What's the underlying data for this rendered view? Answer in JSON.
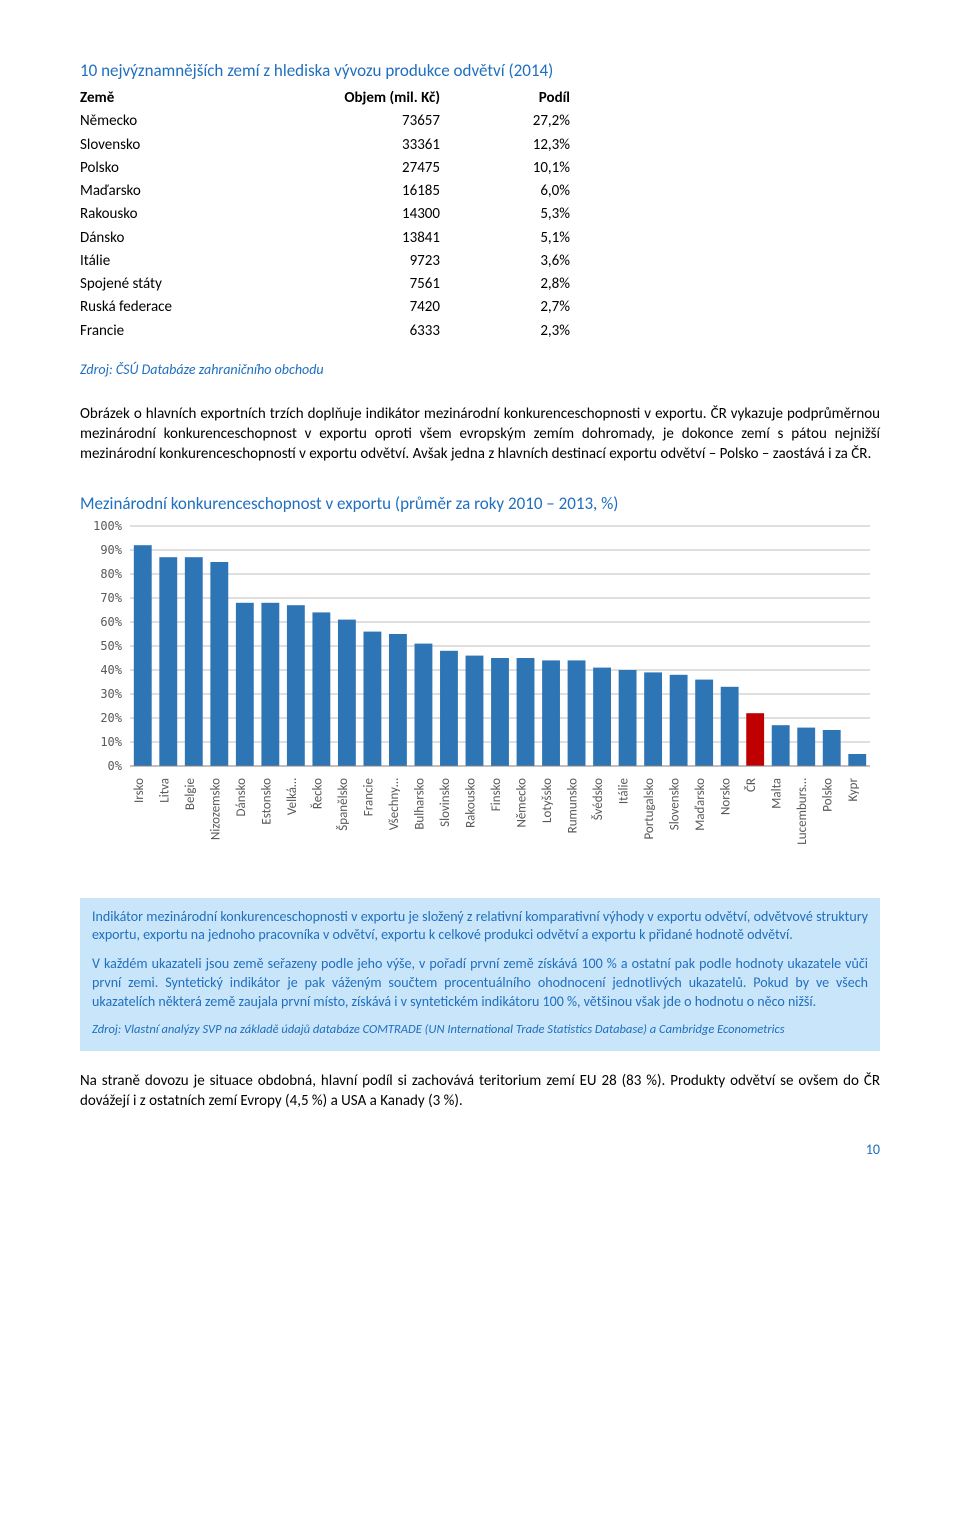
{
  "table": {
    "title": "10 nejvýznamnějších zemí z hlediska vývozu produkce odvětví (2014)",
    "header": {
      "country": "Země",
      "volume": "Objem (mil. Kč)",
      "share": "Podíl"
    },
    "rows": [
      {
        "country": "Německo",
        "volume": "73657",
        "share": "27,2%"
      },
      {
        "country": "Slovensko",
        "volume": "33361",
        "share": "12,3%"
      },
      {
        "country": "Polsko",
        "volume": "27475",
        "share": "10,1%"
      },
      {
        "country": "Maďarsko",
        "volume": "16185",
        "share": "6,0%"
      },
      {
        "country": "Rakousko",
        "volume": "14300",
        "share": "5,3%"
      },
      {
        "country": "Dánsko",
        "volume": "13841",
        "share": "5,1%"
      },
      {
        "country": "Itálie",
        "volume": "9723",
        "share": "3,6%"
      },
      {
        "country": "Spojené státy",
        "volume": "7561",
        "share": "2,8%"
      },
      {
        "country": "Ruská federace",
        "volume": "7420",
        "share": "2,7%"
      },
      {
        "country": "Francie",
        "volume": "6333",
        "share": "2,3%"
      }
    ],
    "source": "Zdroj: ČSÚ Databáze zahraničního obchodu"
  },
  "para1": "Obrázek o hlavních exportních trzích doplňuje indikátor mezinárodní konkurenceschopnosti v exportu. ČR vykazuje podprůměrnou mezinárodní konkurenceschopnost v exportu oproti všem evropským zemím dohromady, je dokonce zemí s pátou nejnižší mezinárodní konkurenceschopností v exportu odvětví. Avšak jedna z hlavních destinací exportu odvětví – Polsko – zaostává i za ČR.",
  "chart": {
    "type": "bar",
    "title": "Mezinárodní konkurenceschopnost v exportu (průměr za roky 2010 – 2013, %)",
    "title_fontsize": 17,
    "title_color": "#1f6fc0",
    "label_fontsize": 13,
    "tick_fontsize": 12,
    "bar_width": 0.7,
    "ylim": [
      0,
      100
    ],
    "ytick_step": 10,
    "tick_format_suffix": "%",
    "background_color": "#ffffff",
    "plot_background_color": "#ffffff",
    "grid_color": "#bfbfbf",
    "axis_color": "#808080",
    "text_color": "#595959",
    "default_bar_color": "#2e75b6",
    "highlight_bar_color": "#c00000",
    "categories": [
      "Irsko",
      "Litva",
      "Belgie",
      "Nizozemsko",
      "Dánsko",
      "Estonsko",
      "Velká…",
      "Řecko",
      "Španělsko",
      "Francie",
      "Všechny…",
      "Bulharsko",
      "Slovinsko",
      "Rakousko",
      "Finsko",
      "Německo",
      "Lotyšsko",
      "Rumunsko",
      "Švédsko",
      "Itálie",
      "Portugalsko",
      "Slovensko",
      "Maďarsko",
      "Norsko",
      "ČR",
      "Malta",
      "Lucemburs…",
      "Polsko",
      "Kypr"
    ],
    "values": [
      92,
      87,
      87,
      85,
      68,
      68,
      67,
      64,
      61,
      56,
      55,
      51,
      48,
      46,
      45,
      45,
      44,
      44,
      41,
      40,
      39,
      38,
      36,
      33,
      22,
      17,
      16,
      15,
      5
    ],
    "colors": [
      null,
      null,
      null,
      null,
      null,
      null,
      null,
      null,
      null,
      null,
      null,
      null,
      null,
      null,
      null,
      null,
      null,
      null,
      null,
      null,
      null,
      null,
      null,
      null,
      "#c00000",
      null,
      null,
      null,
      null
    ]
  },
  "infobox": {
    "p1": "Indikátor mezinárodní konkurenceschopnosti v exportu je složený z relativní komparativní výhody v exportu odvětví, odvětvové struktury exportu, exportu na jednoho pracovníka v odvětví, exportu k celkové produkci odvětví a exportu k přidané hodnotě odvětví.",
    "p2": "V každém ukazateli jsou země seřazeny podle jeho výše, v pořadí první země získává 100 % a ostatní pak podle hodnoty ukazatele vůči první zemi. Syntetický indikátor je pak váženým součtem procentuálního ohodnocení jednotlivých ukazatelů. Pokud by ve všech ukazatelích některá země zaujala první místo, získává i v syntetickém indikátoru 100 %, většinou však jde o hodnotu o něco nižší.",
    "src": "Zdroj: Vlastní analýzy SVP na základě údajů databáze COMTRADE (UN International Trade Statistics Database) a Cambridge Econometrics"
  },
  "para2": "Na straně dovozu je situace obdobná, hlavní podíl si zachovává teritorium zemí EU 28 (83 %). Produkty odvětví se ovšem do ČR dovážejí i z ostatních zemí Evropy (4,5 %) a USA a Kanady (3 %).",
  "page_number": "10"
}
